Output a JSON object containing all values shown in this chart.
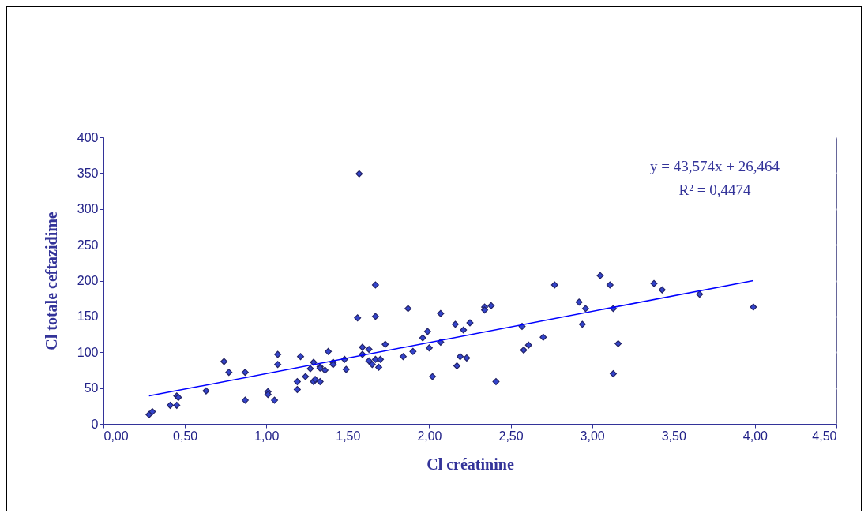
{
  "chart_data": {
    "type": "scatter",
    "xlabel": "Cl créatinine",
    "ylabel": "Cl totale ceftazidime",
    "xlim": [
      0,
      4.5
    ],
    "ylim": [
      0,
      400
    ],
    "xticks": [
      {
        "value": 0,
        "label": "0,00"
      },
      {
        "value": 0.5,
        "label": "0,50"
      },
      {
        "value": 1,
        "label": "1,00"
      },
      {
        "value": 1.5,
        "label": "1,50"
      },
      {
        "value": 2,
        "label": "2,00"
      },
      {
        "value": 2.5,
        "label": "2,50"
      },
      {
        "value": 3,
        "label": "3,00"
      },
      {
        "value": 3.5,
        "label": "3,50"
      },
      {
        "value": 4,
        "label": "4,00"
      },
      {
        "value": 4.5,
        "label": "4,50"
      }
    ],
    "yticks": [
      0,
      50,
      100,
      150,
      200,
      250,
      300,
      350,
      400
    ],
    "grid": "y",
    "marker": "diamond",
    "annotations": [
      "y = 43,574x + 26,464",
      "R² = 0,4474"
    ],
    "series": [
      {
        "color": "#3344cc",
        "x": [
          0.28,
          0.3,
          0.41,
          0.45,
          0.45,
          0.46,
          0.63,
          0.74,
          0.77,
          0.87,
          0.87,
          1.01,
          1.01,
          1.05,
          1.07,
          1.07,
          1.19,
          1.19,
          1.21,
          1.24,
          1.27,
          1.29,
          1.29,
          1.3,
          1.33,
          1.33,
          1.33,
          1.36,
          1.38,
          1.41,
          1.41,
          1.48,
          1.49,
          1.57,
          1.67,
          1.56,
          1.67,
          1.87,
          2.07,
          1.59,
          1.59,
          1.63,
          1.63,
          1.65,
          1.67,
          1.7,
          1.69,
          1.73,
          1.84,
          1.9,
          1.96,
          1.99,
          2.0,
          2.02,
          2.07,
          2.16,
          2.17,
          2.19,
          2.21,
          2.23,
          2.25,
          2.34,
          2.34,
          2.38,
          2.41,
          2.57,
          2.58,
          2.61,
          2.7,
          2.77,
          3.05,
          3.11,
          3.38,
          3.43,
          2.92,
          2.96,
          3.13,
          3.66,
          3.99,
          2.94,
          3.16,
          3.13
        ],
        "values": [
          13,
          17,
          26,
          26,
          39,
          37,
          46,
          87,
          72,
          72,
          33,
          45,
          41,
          33,
          97,
          83,
          48,
          59,
          94,
          66,
          77,
          86,
          59,
          62,
          80,
          78,
          59,
          75,
          101,
          86,
          83,
          90,
          76,
          349,
          194,
          148,
          150,
          161,
          154,
          107,
          97,
          104,
          88,
          83,
          90,
          90,
          79,
          111,
          94,
          101,
          120,
          129,
          106,
          66,
          114,
          139,
          81,
          94,
          131,
          92,
          141,
          163,
          159,
          165,
          59,
          136,
          103,
          110,
          121,
          194,
          207,
          194,
          196,
          187,
          170,
          161,
          161,
          181,
          163,
          139,
          112,
          70
        ]
      },
      {
        "type": "line",
        "color": "#0000ff",
        "line_style": "solid",
        "marker": "none",
        "x": [
          0.28,
          3.99
        ],
        "values": [
          39,
          200
        ]
      }
    ]
  }
}
